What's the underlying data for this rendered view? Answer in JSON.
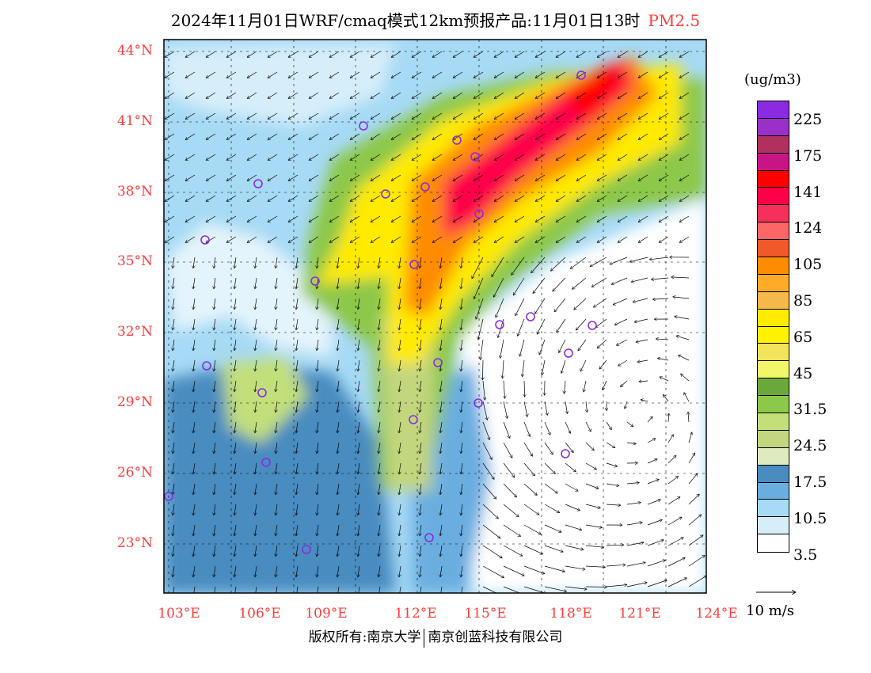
{
  "title": {
    "text": "2024年11月01日WRF/cmaq模式12km预报产品:11月01日13时",
    "variable": "PM2.5"
  },
  "lat_labels": [
    "44°N",
    "41°N",
    "38°N",
    "35°N",
    "32°N",
    "29°N",
    "26°N",
    "23°N"
  ],
  "lon_labels": [
    "103°E",
    "106°E",
    "109°E",
    "112°E",
    "115°E",
    "118°E",
    "121°E",
    "124°E"
  ],
  "colorbar": {
    "unit": "(ug/m3)",
    "colors": [
      "#8a2be2",
      "#9b30c8",
      "#b03060",
      "#c71585",
      "#ff0000",
      "#ff0048",
      "#f5305a",
      "#ff6666",
      "#f05a2a",
      "#ff8c00",
      "#ffab28",
      "#f5b84a",
      "#ffea00",
      "#fff200",
      "#f2e35a",
      "#f2f76a",
      "#6aa83a",
      "#8cc84a",
      "#c2df7a",
      "#c2d67e",
      "#dfeac0",
      "#4a8cc0",
      "#6aaee0",
      "#a6daf5",
      "#d6eefa",
      "#ffffff"
    ],
    "labels": [
      "225",
      "175",
      "141",
      "124",
      "105",
      "85",
      "65",
      "45",
      "31.5",
      "24.5",
      "17.5",
      "10.5",
      "3.5"
    ]
  },
  "wind_scale": {
    "label": "10 m/s"
  },
  "footer": {
    "left": "版权所有:南京大学",
    "right": "南京创蓝科技有限公司"
  }
}
